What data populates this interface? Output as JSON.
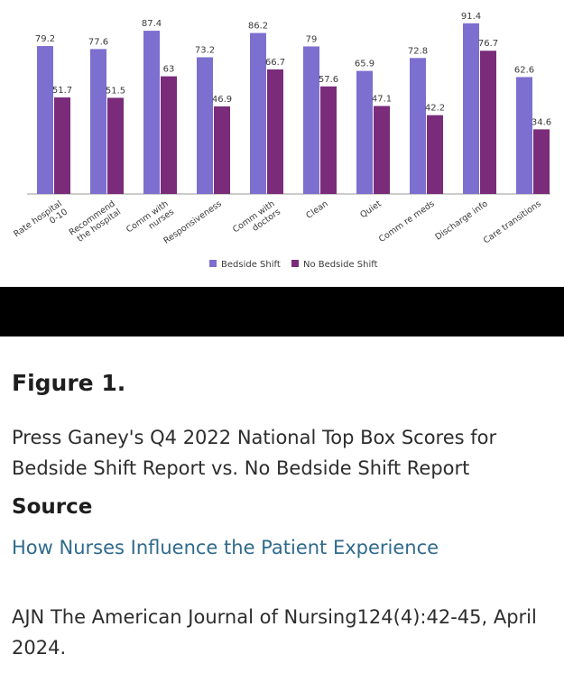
{
  "chart_data": {
    "type": "bar",
    "categories": [
      [
        "Rate hospital",
        "0-10"
      ],
      [
        "Recommend",
        "the hospital"
      ],
      [
        "Comm with",
        "nurses"
      ],
      [
        "Responsiveness"
      ],
      [
        "Comm with",
        "doctors"
      ],
      [
        "Clean"
      ],
      [
        "Quiet"
      ],
      [
        "Comm re meds"
      ],
      [
        "Discharge info"
      ],
      [
        "Care transitions"
      ]
    ],
    "series": [
      {
        "name": "Bedside Shift",
        "color": "#7c6fcf",
        "values": [
          79.2,
          77.6,
          87.4,
          73.2,
          86.2,
          79,
          65.9,
          72.8,
          91.4,
          62.6
        ],
        "labels": [
          "79.2",
          "77.6",
          "87.4",
          "73.2",
          "86.2",
          "79",
          "65.9",
          "72.8",
          "91.4",
          "62.6"
        ]
      },
      {
        "name": "No Bedside Shift",
        "color": "#7a2c7a",
        "values": [
          51.7,
          51.5,
          63,
          46.9,
          66.7,
          57.6,
          47.1,
          42.2,
          76.7,
          34.6
        ],
        "labels": [
          "51.7",
          "51.5",
          "63",
          "46.9",
          "66.7",
          "57.6",
          "47.1",
          "42.2",
          "76.7",
          "34.6"
        ]
      }
    ],
    "ylim": [
      0,
      100
    ],
    "grid": false,
    "legend_position": "bottom"
  },
  "caption": {
    "figure_title": "Figure 1.",
    "description": "Press Ganey's Q4 2022 National Top Box Scores for Bedside Shift Report vs. No Bedside Shift Report",
    "source_heading": "Source",
    "source_link": "How Nurses Influence the Patient Experience",
    "citation": "AJN The American Journal of Nursing124(4):42-45, April 2024."
  }
}
